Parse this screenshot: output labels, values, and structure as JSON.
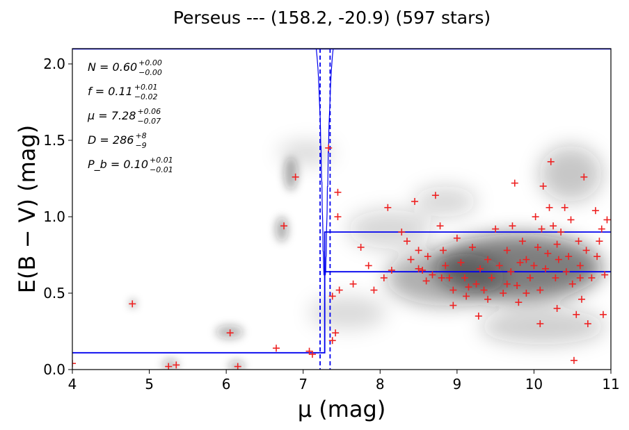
{
  "chart_data": {
    "type": "scatter",
    "title": "Perseus --- (158.2, -20.9) (597 stars)",
    "xlabel": "μ (mag)",
    "ylabel": "E(B − V) (mag)",
    "xlim": [
      4,
      11
    ],
    "ylim": [
      0,
      2.1
    ],
    "x_ticks": [
      "4",
      "5",
      "6",
      "7",
      "8",
      "9",
      "10",
      "11"
    ],
    "y_ticks": [
      "0.0",
      "0.5",
      "1.0",
      "1.5",
      "2.0"
    ],
    "annotations": [
      {
        "label": "N = 0.60",
        "sup": "+0.00",
        "sub": "−0.00"
      },
      {
        "label": "f = 0.11",
        "sup": "+0.01",
        "sub": "−0.02"
      },
      {
        "label": "μ = 7.28",
        "sup": "+0.06",
        "sub": "−0.07"
      },
      {
        "label": "D = 286",
        "sup": "+8",
        "sub": "−9"
      },
      {
        "label": "P_b = 0.10",
        "sup": "+0.01",
        "sub": "−0.01"
      }
    ],
    "step_model": {
      "color": "#0000ee",
      "foreground_level": 0.11,
      "cloud_distance_modulus": 7.28,
      "upper_level": 0.9,
      "lower_level": 0.64
    },
    "distance_bounds": [
      7.22,
      7.35
    ],
    "probability_curve_color": "#0000ee",
    "stars_color": "#ee2222",
    "stars": [
      [
        4.0,
        0.04
      ],
      [
        4.78,
        0.43
      ],
      [
        5.25,
        0.02
      ],
      [
        5.35,
        0.03
      ],
      [
        6.05,
        0.24
      ],
      [
        6.15,
        0.02
      ],
      [
        6.65,
        0.14
      ],
      [
        6.75,
        0.94
      ],
      [
        6.9,
        1.26
      ],
      [
        7.08,
        0.12
      ],
      [
        7.12,
        0.1
      ],
      [
        7.33,
        1.45
      ],
      [
        7.38,
        0.19
      ],
      [
        7.42,
        0.24
      ],
      [
        7.45,
        1.16
      ],
      [
        7.47,
        0.52
      ],
      [
        7.45,
        1.0
      ],
      [
        7.38,
        0.48
      ],
      [
        7.65,
        0.56
      ],
      [
        7.75,
        0.8
      ],
      [
        7.85,
        0.68
      ],
      [
        7.92,
        0.52
      ],
      [
        8.05,
        0.6
      ],
      [
        8.1,
        1.06
      ],
      [
        8.15,
        0.65
      ],
      [
        8.28,
        0.9
      ],
      [
        8.35,
        0.84
      ],
      [
        8.4,
        0.72
      ],
      [
        8.45,
        1.1
      ],
      [
        8.5,
        0.78
      ],
      [
        8.55,
        0.65
      ],
      [
        8.6,
        0.58
      ],
      [
        8.62,
        0.74
      ],
      [
        8.68,
        0.62
      ],
      [
        8.72,
        1.14
      ],
      [
        8.78,
        0.94
      ],
      [
        8.82,
        0.78
      ],
      [
        8.85,
        0.68
      ],
      [
        8.9,
        0.6
      ],
      [
        8.95,
        0.52
      ],
      [
        9.0,
        0.86
      ],
      [
        9.05,
        0.7
      ],
      [
        9.1,
        0.6
      ],
      [
        9.12,
        0.48
      ],
      [
        9.2,
        0.8
      ],
      [
        9.25,
        0.56
      ],
      [
        9.28,
        0.35
      ],
      [
        9.3,
        0.66
      ],
      [
        9.35,
        0.52
      ],
      [
        9.4,
        0.72
      ],
      [
        9.45,
        0.6
      ],
      [
        9.5,
        0.92
      ],
      [
        9.55,
        0.68
      ],
      [
        9.6,
        0.5
      ],
      [
        9.65,
        0.78
      ],
      [
        9.7,
        0.64
      ],
      [
        9.72,
        0.94
      ],
      [
        9.75,
        1.22
      ],
      [
        9.78,
        0.55
      ],
      [
        9.8,
        0.44
      ],
      [
        9.85,
        0.84
      ],
      [
        9.9,
        0.72
      ],
      [
        9.95,
        0.6
      ],
      [
        10.0,
        0.68
      ],
      [
        10.02,
        1.0
      ],
      [
        10.05,
        0.8
      ],
      [
        10.08,
        0.52
      ],
      [
        10.1,
        0.92
      ],
      [
        10.12,
        1.2
      ],
      [
        10.15,
        0.66
      ],
      [
        10.18,
        0.76
      ],
      [
        10.2,
        1.06
      ],
      [
        10.22,
        1.36
      ],
      [
        10.25,
        0.94
      ],
      [
        10.28,
        0.6
      ],
      [
        10.3,
        0.82
      ],
      [
        10.32,
        0.72
      ],
      [
        10.35,
        0.9
      ],
      [
        10.4,
        1.06
      ],
      [
        10.42,
        0.64
      ],
      [
        10.45,
        0.74
      ],
      [
        10.48,
        0.98
      ],
      [
        10.5,
        0.56
      ],
      [
        10.52,
        0.06
      ],
      [
        10.55,
        0.36
      ],
      [
        10.58,
        0.84
      ],
      [
        10.6,
        0.68
      ],
      [
        10.62,
        0.46
      ],
      [
        10.65,
        1.26
      ],
      [
        10.68,
        0.78
      ],
      [
        10.7,
        0.3
      ],
      [
        10.75,
        0.6
      ],
      [
        10.8,
        1.04
      ],
      [
        10.82,
        0.74
      ],
      [
        10.85,
        0.84
      ],
      [
        10.88,
        0.92
      ],
      [
        10.9,
        0.36
      ],
      [
        10.92,
        0.62
      ],
      [
        10.95,
        0.98
      ],
      [
        9.4,
        0.46
      ],
      [
        9.15,
        0.54
      ],
      [
        8.95,
        0.42
      ],
      [
        9.65,
        0.56
      ],
      [
        10.3,
        0.4
      ],
      [
        10.08,
        0.3
      ],
      [
        9.9,
        0.5
      ],
      [
        8.8,
        0.6
      ],
      [
        8.5,
        0.66
      ],
      [
        9.82,
        0.7
      ],
      [
        10.6,
        0.6
      ]
    ]
  }
}
